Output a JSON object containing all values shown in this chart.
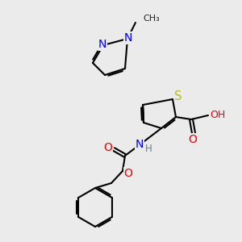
{
  "bg_color": "#ebebeb",
  "atom_colors": {
    "N": "#0000ee",
    "O": "#ee0000",
    "S": "#bbbb00",
    "C": "#000000",
    "H": "#558888"
  },
  "bond_color": "#000000",
  "font_size": 8.5,
  "figsize": [
    3.0,
    3.0
  ],
  "dpi": 100
}
